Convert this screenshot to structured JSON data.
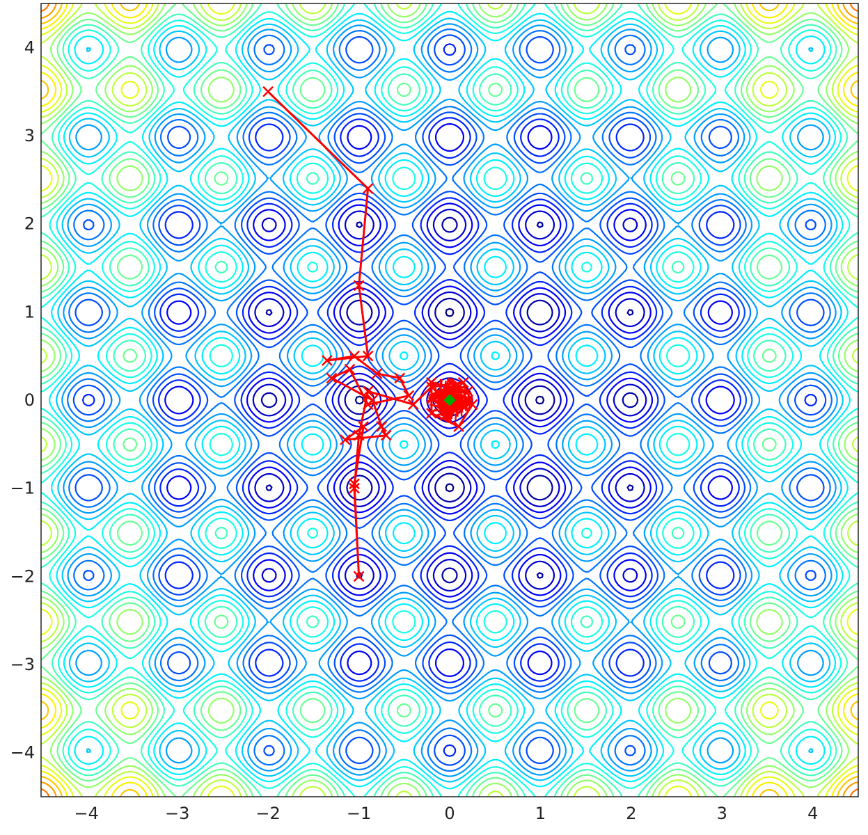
{
  "chart_data": {
    "type": "contour",
    "title": "",
    "xlabel": "",
    "ylabel": "",
    "xlim": [
      -4.5,
      4.5
    ],
    "ylim": [
      -4.5,
      4.5
    ],
    "grid": false,
    "legend": "none",
    "x_ticks": [
      "−4",
      "−3",
      "−2",
      "−1",
      "0",
      "1",
      "2",
      "3",
      "4"
    ],
    "y_ticks": [
      "4",
      "3",
      "2",
      "1",
      "0",
      "−1",
      "−2",
      "−3",
      "−4"
    ],
    "x_tick_values": [
      -4,
      -3,
      -2,
      -1,
      0,
      1,
      2,
      3,
      4
    ],
    "y_tick_values": [
      4,
      3,
      2,
      1,
      0,
      -1,
      -2,
      -3,
      -4
    ],
    "surface": {
      "description": "periodic multimodal landscape; minima at integer grid points, maxima at half-integer points, values rising with distance from origin",
      "colormap": "jet",
      "minima_spacing": 1
    },
    "series": [
      {
        "type": "path",
        "color": "#ff0000",
        "marker": "x",
        "points": [
          [
            -2.0,
            3.5
          ],
          [
            -0.9,
            2.4
          ],
          [
            -1.0,
            1.3
          ],
          [
            -0.9,
            0.5
          ],
          [
            -1.35,
            0.45
          ],
          [
            -1.05,
            0.5
          ],
          [
            -0.8,
            0.3
          ],
          [
            -0.55,
            0.25
          ],
          [
            -0.45,
            0.05
          ],
          [
            -0.9,
            -0.05
          ],
          [
            -1.1,
            0.35
          ],
          [
            -1.3,
            0.25
          ],
          [
            -0.85,
            0.0
          ],
          [
            -0.75,
            -0.3
          ],
          [
            -0.7,
            -0.4
          ],
          [
            -1.15,
            -0.45
          ],
          [
            -0.95,
            -0.3
          ],
          [
            -1.05,
            -0.95
          ],
          [
            -1.0,
            -2.0
          ],
          [
            -1.05,
            -1.0
          ],
          [
            -1.0,
            -0.4
          ],
          [
            -0.9,
            0.1
          ],
          [
            -0.4,
            -0.05
          ],
          [
            -0.2,
            0.15
          ],
          [
            0.15,
            0.2
          ],
          [
            0.25,
            -0.05
          ],
          [
            0.1,
            -0.3
          ],
          [
            -0.2,
            -0.15
          ],
          [
            -0.2,
            0.2
          ],
          [
            0.2,
            0.1
          ],
          [
            0.05,
            -0.1
          ]
        ]
      },
      {
        "type": "point",
        "name": "",
        "color": "#00aa00",
        "marker": "diamond",
        "points": [
          [
            0.0,
            0.0
          ]
        ]
      }
    ]
  }
}
